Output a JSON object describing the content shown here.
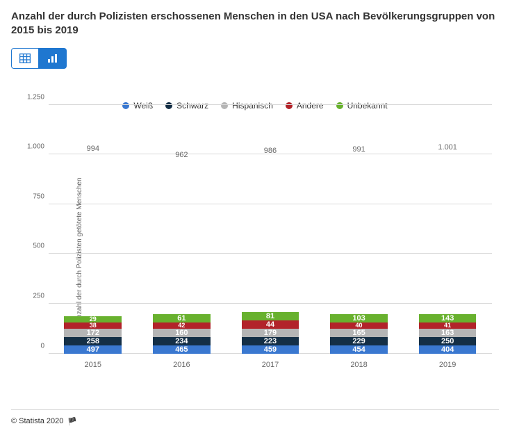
{
  "title": "Anzahl der durch Polizisten erschossenen Menschen in den USA nach Bevölkerungsgruppen von 2015 bis 2019",
  "ylabel": "Anzahl der durch Polizisten getötete Menschen",
  "footer": "© Statista 2020",
  "tabs": {
    "table": "table-view",
    "chart": "chart-view"
  },
  "chart": {
    "type": "stacked-bar",
    "ymax": 1250,
    "yticks": [
      0,
      250,
      500,
      750,
      1000,
      1250
    ],
    "ytick_labels": [
      "0",
      "250",
      "500",
      "750",
      "1.000",
      "1.250"
    ],
    "categories": [
      "2015",
      "2016",
      "2017",
      "2018",
      "2019"
    ],
    "series": [
      {
        "key": "weiss",
        "label": "Weiß",
        "color": "#3a78d0"
      },
      {
        "key": "schwarz",
        "label": "Schwarz",
        "color": "#142f46"
      },
      {
        "key": "hispanisch",
        "label": "Hispanisch",
        "color": "#b5b5b5"
      },
      {
        "key": "andere",
        "label": "Andere",
        "color": "#b2232a"
      },
      {
        "key": "unbekannt",
        "label": "Unbekannt",
        "color": "#68b12e"
      }
    ],
    "data": [
      {
        "total": "994",
        "values": [
          497,
          258,
          172,
          38,
          29
        ]
      },
      {
        "total": "962",
        "values": [
          465,
          234,
          160,
          42,
          61
        ]
      },
      {
        "total": "986",
        "values": [
          459,
          223,
          179,
          44,
          81
        ]
      },
      {
        "total": "991",
        "values": [
          454,
          229,
          165,
          40,
          103
        ]
      },
      {
        "total": "1.001",
        "values": [
          404,
          250,
          163,
          41,
          143
        ]
      }
    ],
    "background": "#ffffff",
    "grid_color": "#d9d9d9"
  }
}
